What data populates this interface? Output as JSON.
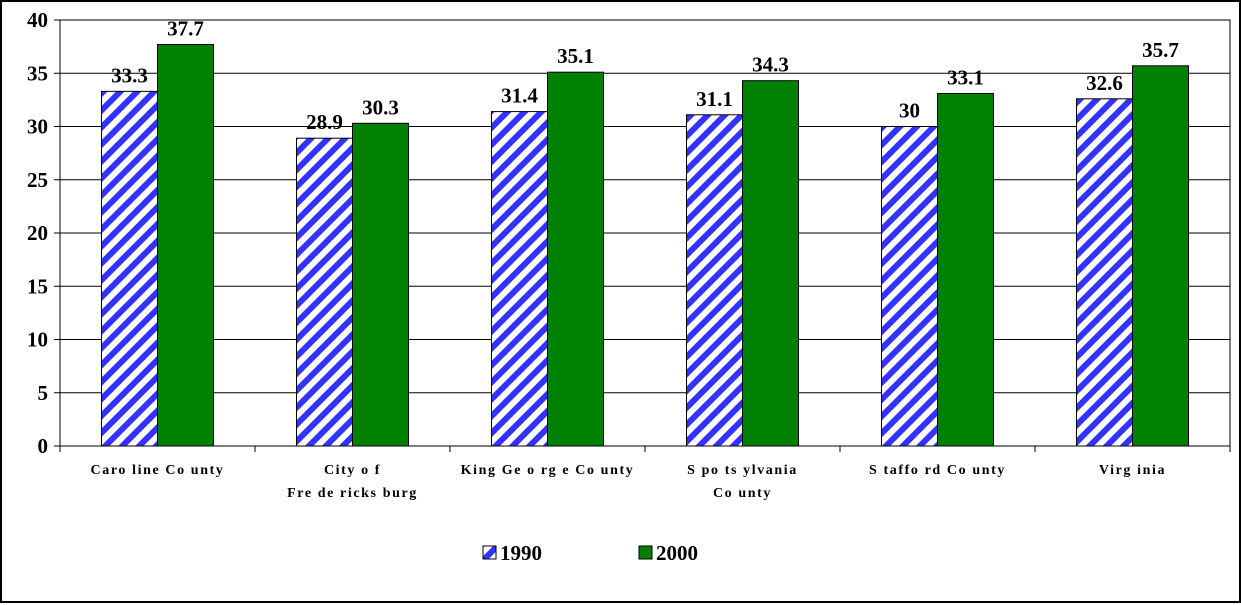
{
  "chart_data": {
    "type": "bar",
    "categories": [
      [
        "Caro line Co unty"
      ],
      [
        "City o f",
        "Fre de ricks burg"
      ],
      [
        "King Ge o rg e Co unty"
      ],
      [
        "S po ts ylvania",
        "Co unty"
      ],
      [
        "S taffo rd Co unty"
      ],
      [
        "Virg inia"
      ]
    ],
    "series": [
      {
        "name": "1990",
        "values": [
          33.3,
          28.9,
          31.4,
          31.1,
          30,
          32.6
        ],
        "labels": [
          "33.3",
          "28.9",
          "31.4",
          "31.1",
          "30",
          "32.6"
        ],
        "color": "#3333ff",
        "pattern": "diagonal-stripes"
      },
      {
        "name": "2000",
        "values": [
          37.7,
          30.3,
          35.1,
          34.3,
          33.1,
          35.7
        ],
        "labels": [
          "37.7",
          "30.3",
          "35.1",
          "34.3",
          "33.1",
          "35.7"
        ],
        "color": "#008000",
        "pattern": "solid"
      }
    ],
    "title": "",
    "xlabel": "",
    "ylabel": "",
    "ylim": [
      0,
      40
    ],
    "yticks": [
      "0",
      "5",
      "10",
      "15",
      "20",
      "25",
      "30",
      "35",
      "40"
    ],
    "grid": true,
    "legend_position": "bottom-center"
  }
}
